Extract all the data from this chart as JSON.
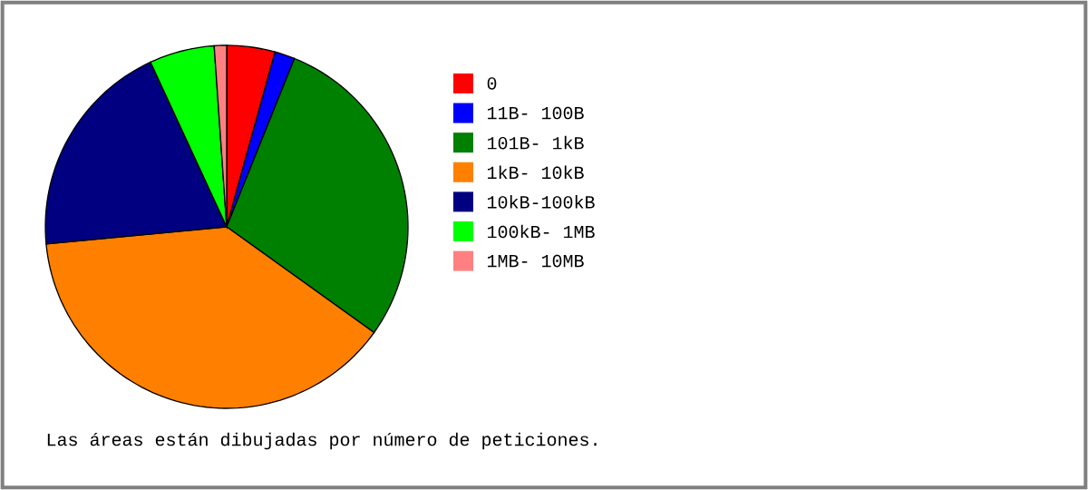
{
  "chart_data": {
    "type": "pie",
    "categories": [
      "0",
      "11B- 100B",
      "101B-  1kB",
      "1kB- 10kB",
      "10kB-100kB",
      "100kB-  1MB",
      "1MB- 10MB"
    ],
    "values": [
      4.3,
      1.8,
      28.8,
      38.6,
      19.6,
      5.8,
      1.1
    ],
    "colors": [
      "#ff0000",
      "#0000ff",
      "#008000",
      "#ff8000",
      "#000080",
      "#00ff00",
      "#ff8080"
    ],
    "legend": "right",
    "annotations": [
      "Las áreas están dibujadas por número de peticiones."
    ]
  }
}
